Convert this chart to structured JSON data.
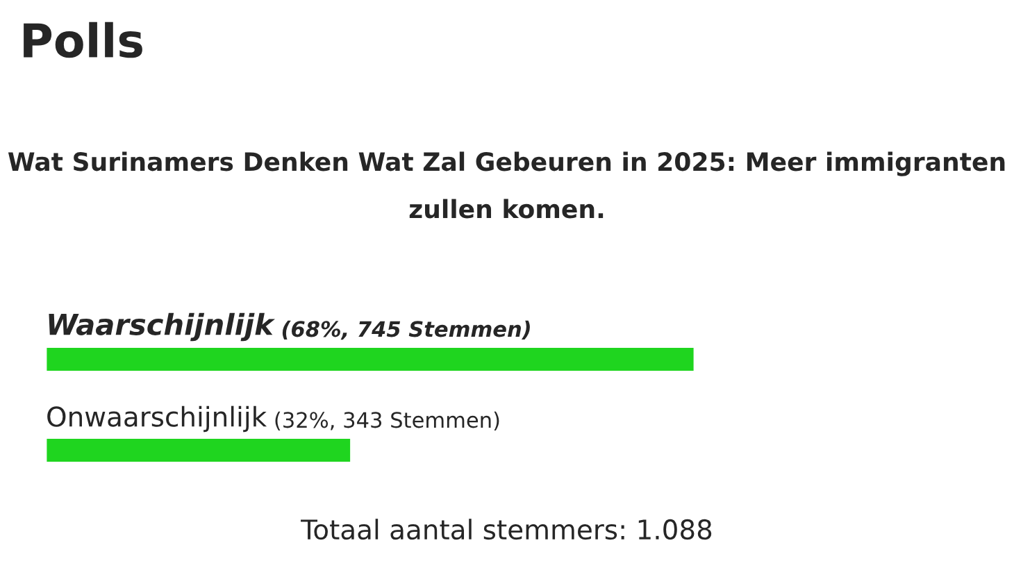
{
  "chart_data": {
    "type": "bar",
    "orientation": "horizontal",
    "title": "Polls",
    "subtitle": "Wat Surinamers Denken Wat Zal Gebeuren in 2025: Meer immigranten zullen komen.",
    "categories": [
      "Waarschijnlijk",
      "Onwaarschijnlijk"
    ],
    "values": [
      68,
      32
    ],
    "value_labels": [
      "(68%, 745 Stemmen)",
      "(32%, 343 Stemmen)"
    ],
    "colors": [
      "#1fd51f",
      "#1fd51f"
    ],
    "tick_labels": false,
    "annotations": [
      "Totaal aantal stemmers: 1.088"
    ]
  }
}
